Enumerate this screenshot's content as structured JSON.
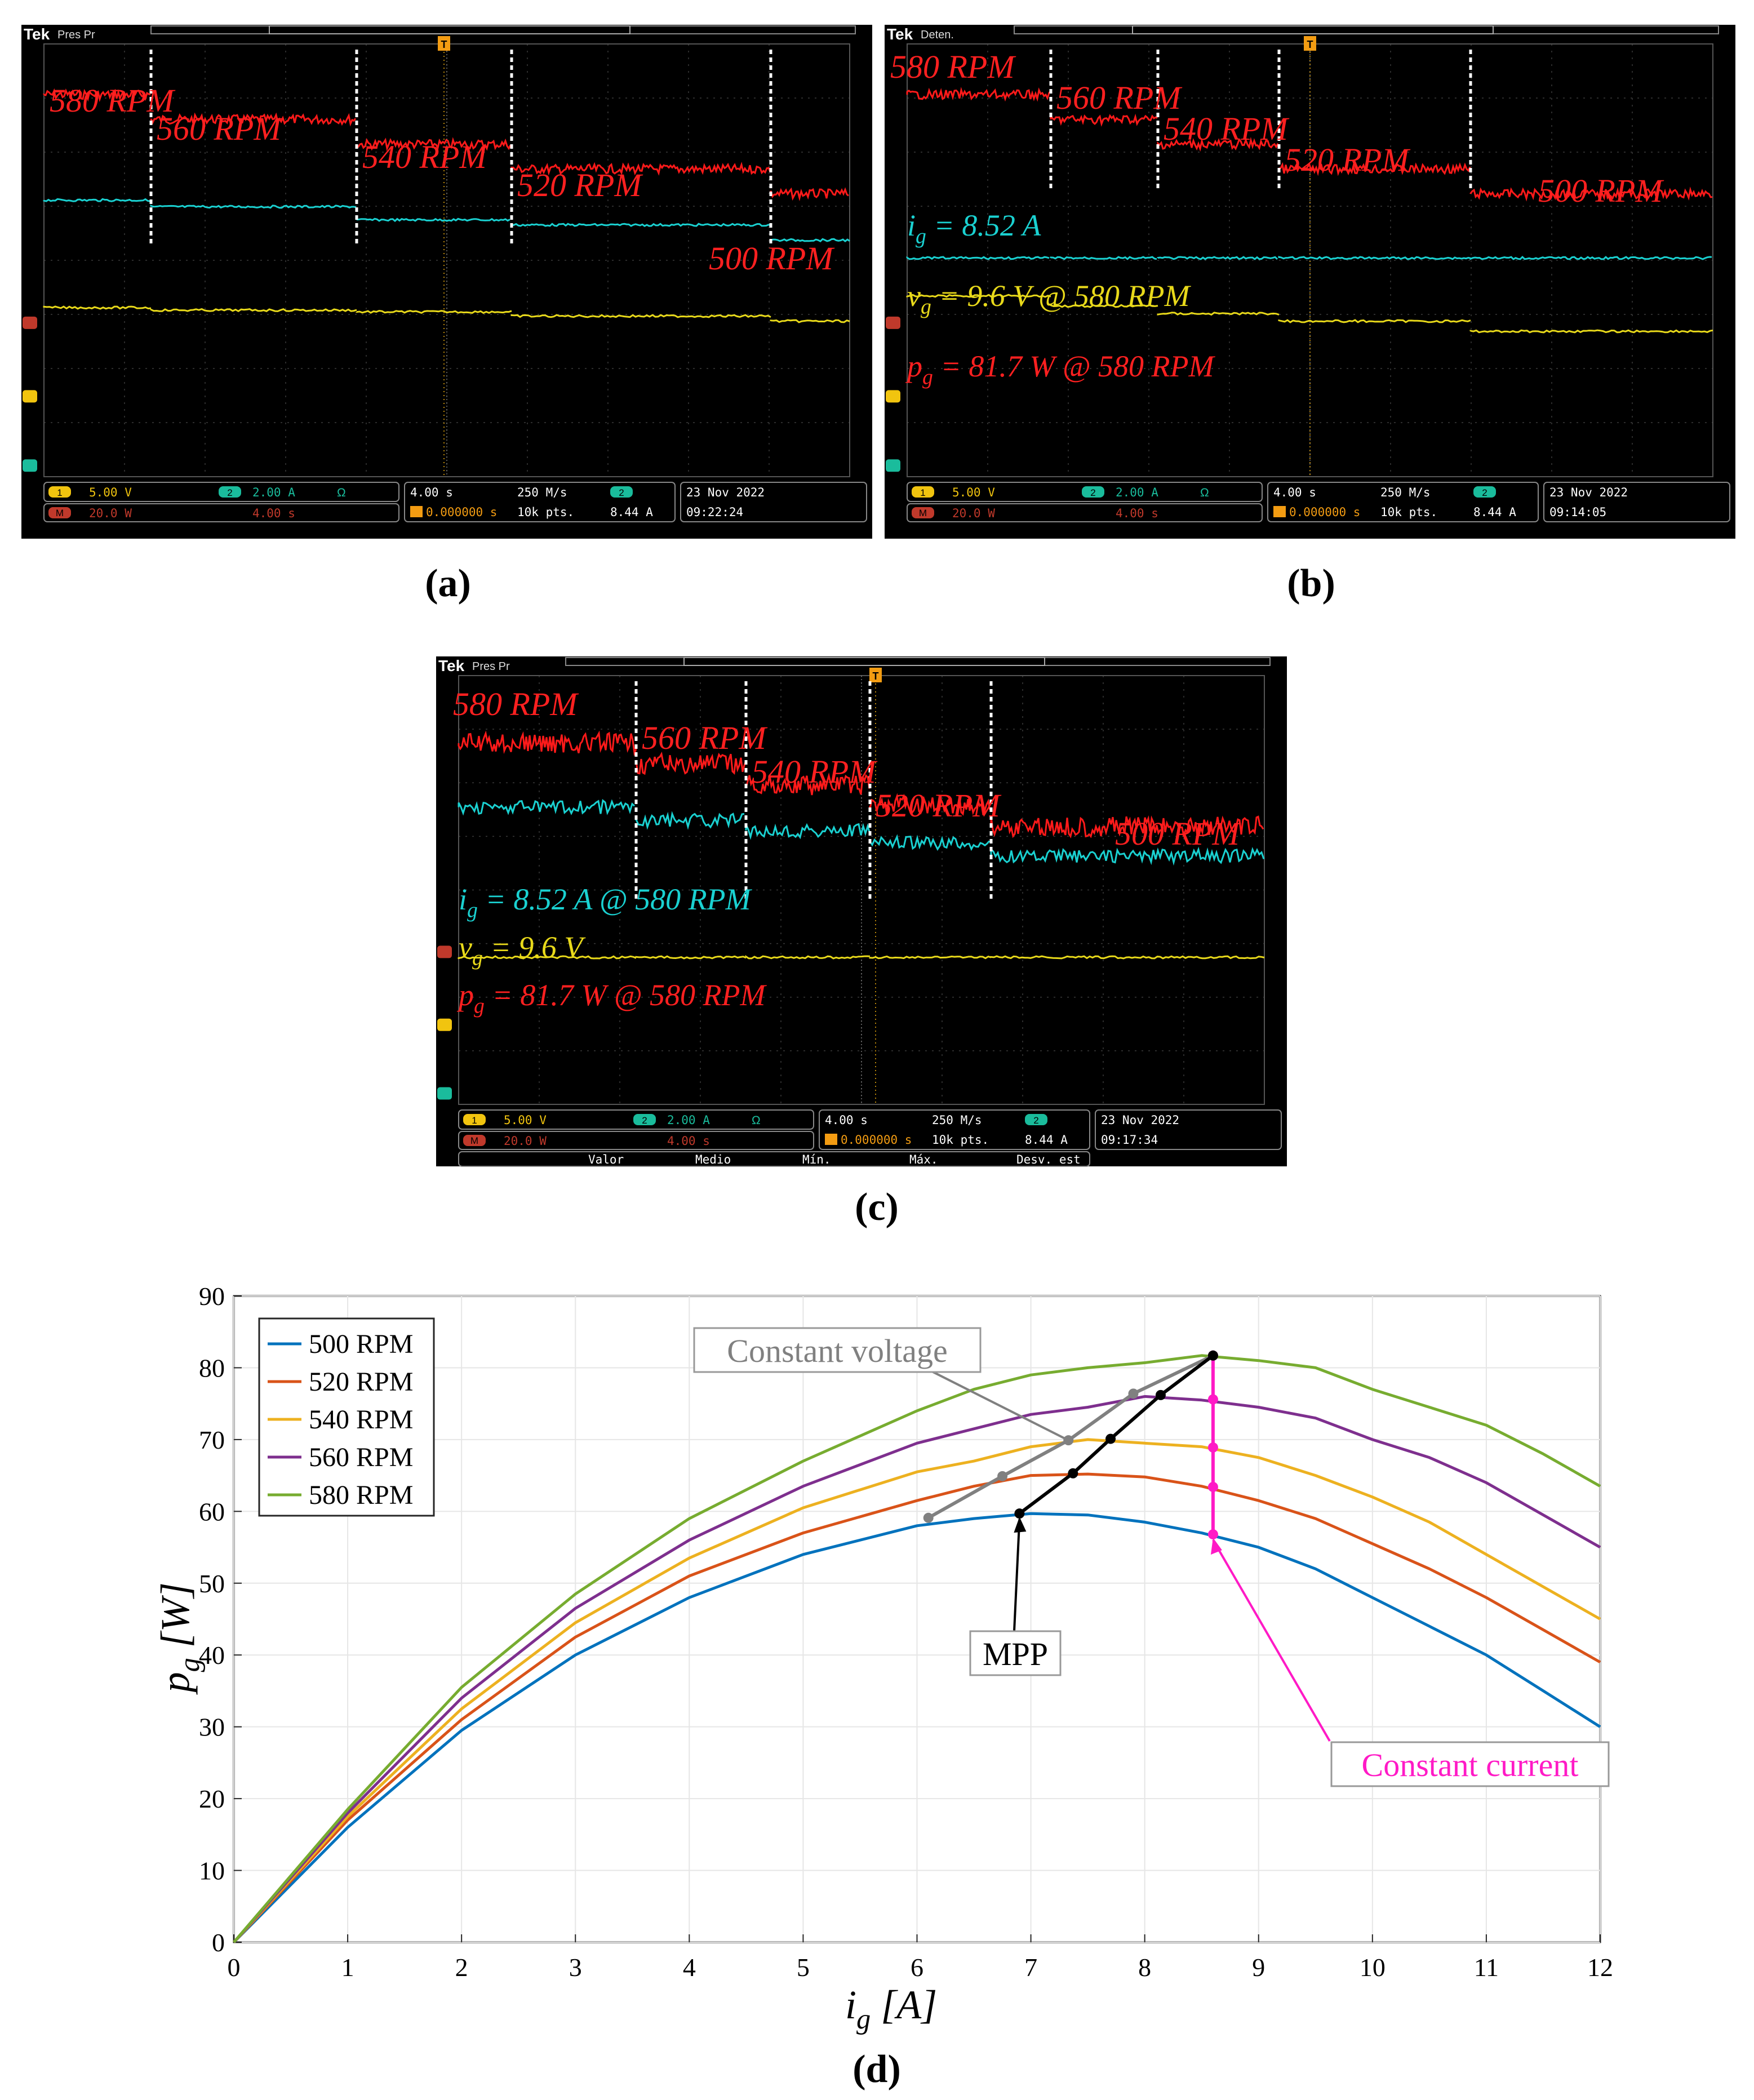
{
  "scopes": [
    {
      "id": "a",
      "caption": "(a)",
      "header_status": "Pres Pr",
      "traces": {
        "red": [
          580,
          560,
          540,
          520,
          500
        ],
        "cyan": [
          8.52,
          8.2,
          7.55,
          7.3,
          6.55
        ],
        "yellow": [
          9.6,
          9.45,
          9.35,
          9.1,
          8.8
        ]
      },
      "labels": [
        "580 RPM",
        "560 RPM",
        "540 RPM",
        "520 RPM",
        "500 RPM"
      ],
      "extra_labels": [],
      "status": {
        "ch1": "5.00 V",
        "ch2": "2.00 A",
        "ch2_sym": "Ω",
        "math": "20.0 W",
        "math_time": "4.00 s",
        "timebase": "4.00 s",
        "trig_pos": "0.000000 s",
        "rate": "250 M/s",
        "points": "10k pts.",
        "trig_ch": "2",
        "trig_level": "8.44 A",
        "date": "23 Nov 2022",
        "time": "09:22:24"
      }
    },
    {
      "id": "b",
      "caption": "(b)",
      "header_status": "Deten.",
      "traces": {
        "red": [
          580,
          560,
          540,
          520,
          500
        ],
        "cyan": [
          8.52,
          8.52,
          8.52,
          8.52,
          8.52
        ],
        "yellow": [
          9.6,
          9.2,
          8.9,
          8.6,
          8.2
        ]
      },
      "labels": [
        "580 RPM",
        "560 RPM",
        "540 RPM",
        "520 RPM",
        "500 RPM"
      ],
      "extra_labels": [
        "i_g = 8.52 A",
        "v_g = 9.6 V @ 580 RPM",
        "p_g = 81.7 W @ 580 RPM"
      ],
      "status": {
        "ch1": "5.00 V",
        "ch2": "2.00 A",
        "ch2_sym": "Ω",
        "math": "20.0 W",
        "math_time": "4.00 s",
        "timebase": "4.00 s",
        "trig_pos": "0.000000 s",
        "rate": "250 M/s",
        "points": "10k pts.",
        "trig_ch": "2",
        "trig_level": "8.44 A",
        "date": "23 Nov 2022",
        "time": "09:14:05"
      }
    },
    {
      "id": "c",
      "caption": "(c)",
      "header_status": "Pres Pr",
      "traces": {
        "red": [
          580,
          560,
          540,
          520,
          500
        ],
        "cyan": [
          8.52,
          8.0,
          7.6,
          7.1,
          6.6
        ],
        "yellow": [
          9.6,
          9.6,
          9.6,
          9.6,
          9.6
        ]
      },
      "labels": [
        "580 RPM",
        "560 RPM",
        "540 RPM",
        "520 RPM",
        "500 RPM"
      ],
      "extra_labels": [
        "i_g = 8.52 A @ 580 RPM",
        "v_g = 9.6 V",
        "p_g = 81.7 W @ 580 RPM"
      ],
      "measure_row": [
        "Valor",
        "Medio",
        "Mín.",
        "Máx.",
        "Desv. est"
      ],
      "status": {
        "ch1": "5.00 V",
        "ch2": "2.00 A",
        "ch2_sym": "Ω",
        "math": "20.0 W",
        "math_time": "4.00 s",
        "timebase": "4.00 s",
        "trig_pos": "0.000000 s",
        "rate": "250 M/s",
        "points": "10k pts.",
        "trig_ch": "2",
        "trig_level": "8.44 A",
        "date": "23 Nov 2022",
        "time": "09:17:34"
      }
    }
  ],
  "chart_data": {
    "type": "line",
    "caption": "(d)",
    "xlabel": "i_g [A]",
    "ylabel": "p_g [W]",
    "xlim": [
      0,
      12
    ],
    "ylim": [
      0,
      90
    ],
    "xticks": [
      0,
      1,
      2,
      3,
      4,
      5,
      6,
      7,
      8,
      9,
      10,
      11,
      12
    ],
    "yticks": [
      0,
      10,
      20,
      30,
      40,
      50,
      60,
      70,
      80,
      90
    ],
    "grid": true,
    "legend_position": "top-left",
    "series": [
      {
        "name": "500 RPM",
        "color": "#0072BD",
        "x": [
          0,
          1,
          2,
          3,
          4,
          5,
          6,
          6.5,
          7,
          7.5,
          8,
          8.5,
          9,
          9.5,
          10,
          10.5,
          11,
          11.5,
          12
        ],
        "y": [
          0,
          16,
          29.5,
          40,
          48,
          54,
          58,
          59,
          59.7,
          59.5,
          58.5,
          57,
          55,
          52,
          48,
          44,
          40,
          35,
          30
        ]
      },
      {
        "name": "520 RPM",
        "color": "#D95319",
        "x": [
          0,
          1,
          2,
          3,
          4,
          5,
          6,
          6.5,
          7,
          7.5,
          8,
          8.5,
          9,
          9.5,
          10,
          10.5,
          11,
          11.5,
          12
        ],
        "y": [
          0,
          17,
          31,
          42.5,
          51,
          57,
          61.5,
          63.5,
          65,
          65.2,
          64.8,
          63.5,
          61.5,
          59,
          55.5,
          52,
          48,
          43.5,
          39
        ]
      },
      {
        "name": "540 RPM",
        "color": "#EDB120",
        "x": [
          0,
          1,
          2,
          3,
          4,
          5,
          6,
          6.5,
          7,
          7.5,
          8,
          8.5,
          9,
          9.5,
          10,
          10.5,
          11,
          11.5,
          12
        ],
        "y": [
          0,
          17.5,
          32.5,
          44.5,
          53.5,
          60.5,
          65.5,
          67,
          69,
          70,
          69.5,
          69,
          67.5,
          65,
          62,
          58.5,
          54,
          49.5,
          45
        ]
      },
      {
        "name": "560 RPM",
        "color": "#7E2F8E",
        "x": [
          0,
          1,
          2,
          3,
          4,
          5,
          6,
          6.5,
          7,
          7.5,
          8,
          8.5,
          9,
          9.5,
          10,
          10.5,
          11,
          11.5,
          12
        ],
        "y": [
          0,
          18,
          34,
          46.5,
          56,
          63.5,
          69.5,
          71.5,
          73.5,
          74.5,
          76,
          75.5,
          74.5,
          73,
          70,
          67.5,
          64,
          59.5,
          55
        ]
      },
      {
        "name": "580 RPM",
        "color": "#77AC30",
        "x": [
          0,
          1,
          2,
          3,
          4,
          5,
          6,
          6.5,
          7,
          7.5,
          8,
          8.5,
          9,
          9.5,
          10,
          10.5,
          11,
          11.5,
          12
        ],
        "y": [
          0,
          18.5,
          35.5,
          48.5,
          59,
          67,
          74,
          77,
          79,
          80,
          80.7,
          81.7,
          81,
          80,
          77,
          74.5,
          72,
          68,
          63.5
        ]
      }
    ],
    "mpp": {
      "name": "MPP",
      "color": "#000000",
      "x": [
        6.9,
        7.37,
        7.7,
        8.14,
        8.6
      ],
      "y": [
        59.7,
        65.3,
        70.1,
        76.2,
        81.7
      ]
    },
    "constant_voltage": {
      "name": "Constant voltage",
      "color": "#808080",
      "x": [
        6.1,
        6.75,
        7.33,
        7.9,
        8.6
      ],
      "y": [
        59.1,
        64.9,
        69.9,
        76.4,
        81.7
      ]
    },
    "constant_current": {
      "name": "Constant current",
      "color": "#FF1AC6",
      "x": [
        8.6,
        8.6,
        8.6,
        8.6,
        8.6
      ],
      "y": [
        56.8,
        63.4,
        68.9,
        75.6,
        81.7
      ]
    },
    "annotations": [
      "Constant voltage",
      "MPP",
      "Constant current"
    ]
  }
}
